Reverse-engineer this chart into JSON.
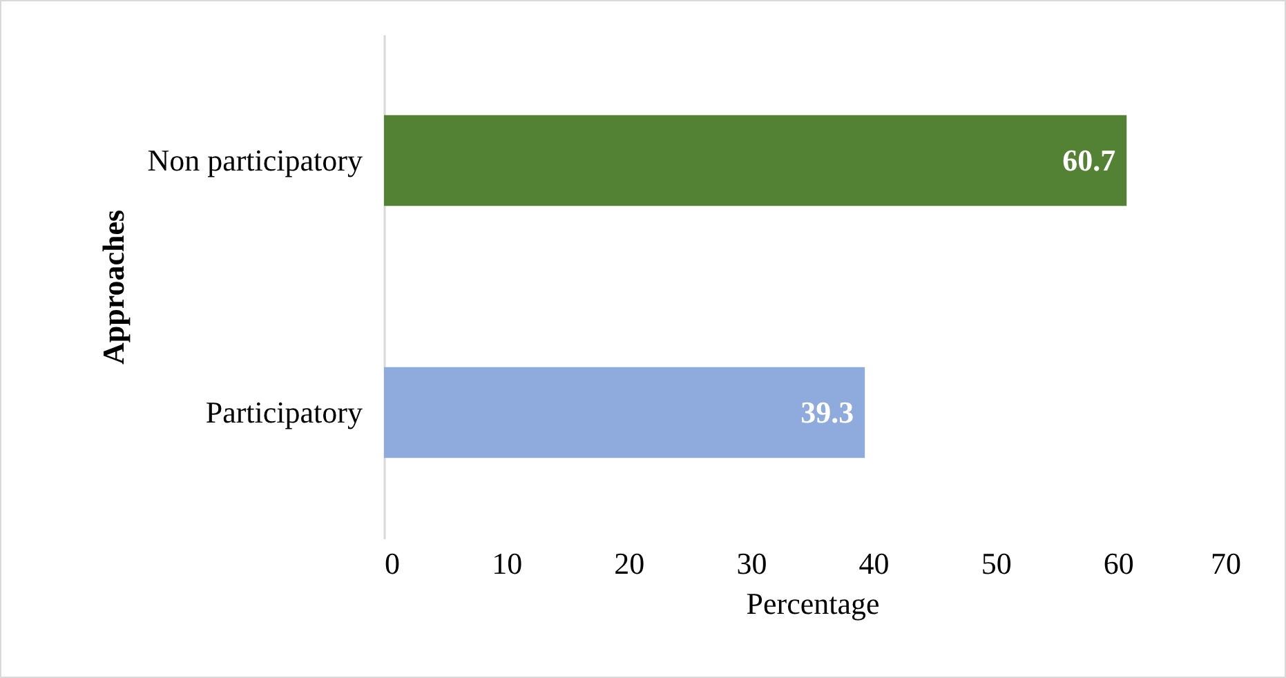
{
  "chart_data": {
    "type": "bar",
    "orientation": "horizontal",
    "xlabel": "Percentage",
    "ylabel": "Approaches",
    "categories": [
      "Non participatory",
      "Participatory"
    ],
    "values": [
      60.7,
      39.3
    ],
    "colors": [
      "#548235",
      "#8faadc"
    ],
    "xlim": [
      0,
      70
    ],
    "xticks": [
      0,
      10,
      20,
      30,
      40,
      50,
      60,
      70
    ],
    "grid": false,
    "data_labels": true
  }
}
